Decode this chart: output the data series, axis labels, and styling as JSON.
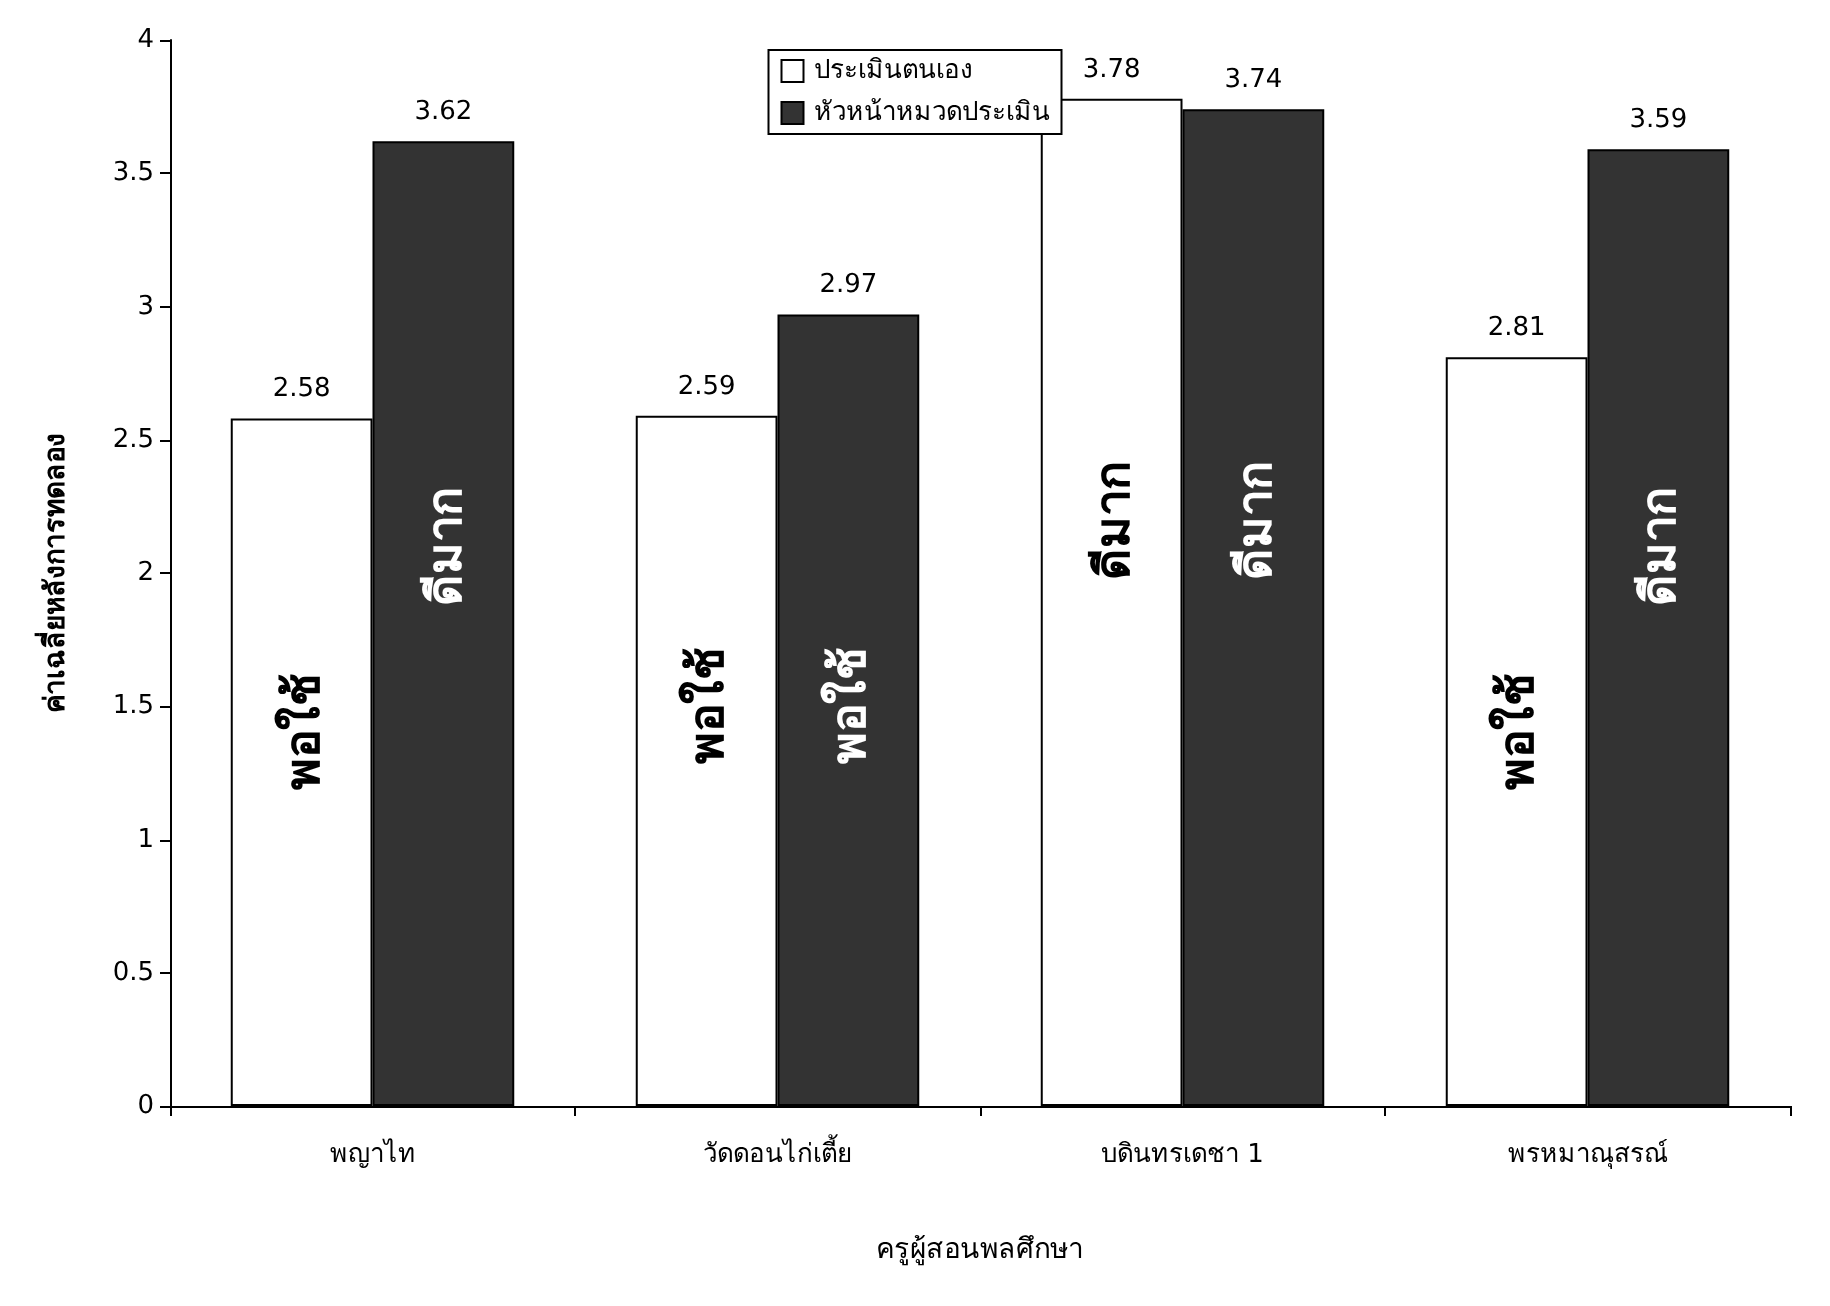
{
  "chart_data": {
    "type": "bar",
    "xlabel": "ครูผู้สอนพลศึกษา",
    "ylabel": "ค่าเฉลี่ยหลังการทดลอง",
    "categories": [
      "พญาไท",
      "วัดดอนไก่เตี้ย",
      "บดินทรเดชา 1",
      "พรหมาณุสรณ์"
    ],
    "series": [
      {
        "name": "ประเมินตนเอง",
        "color": "#ffffff",
        "values": [
          2.58,
          2.59,
          3.78,
          2.81
        ]
      },
      {
        "name": "หัวหน้าหมวดประเมิน",
        "color": "#333333",
        "values": [
          3.62,
          2.97,
          3.74,
          3.59
        ]
      }
    ],
    "ylim": [
      0,
      4
    ],
    "yticks": [
      0,
      0.5,
      1,
      1.5,
      2,
      2.5,
      3,
      3.5,
      4
    ],
    "grid": false,
    "legend": "top",
    "data_labels": true,
    "annotations": [
      {
        "text": "พอใช้",
        "x": "พญาไท",
        "y": 1.4
      },
      {
        "text": "ดีมาก",
        "x": "พญาไท",
        "y": 2.1
      },
      {
        "text": "พอใช้",
        "x": "วัดดอนไก่เตี้ย",
        "y": 1.5
      },
      {
        "text": "พอใช้",
        "x": "วัดดอนไก่เตี้ย",
        "y": 1.5
      },
      {
        "text": "ดีมาก",
        "x": "บดินทรเดชา 1",
        "y": 2.2
      },
      {
        "text": "ดีมาก",
        "x": "บดินทรเดชา 1",
        "y": 2.2
      },
      {
        "text": "พอใช้",
        "x": "พรหมาณุสรณ์",
        "y": 1.4
      },
      {
        "text": "ดีมาก",
        "x": "พรหมาณุสรณ์",
        "y": 2.1
      }
    ]
  }
}
